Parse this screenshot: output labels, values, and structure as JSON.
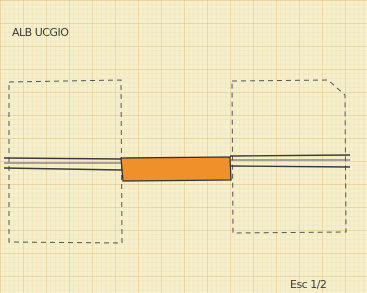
{
  "labels": {
    "title": "ALB UCGIO",
    "scale": "Esc 1/2"
  }
}
